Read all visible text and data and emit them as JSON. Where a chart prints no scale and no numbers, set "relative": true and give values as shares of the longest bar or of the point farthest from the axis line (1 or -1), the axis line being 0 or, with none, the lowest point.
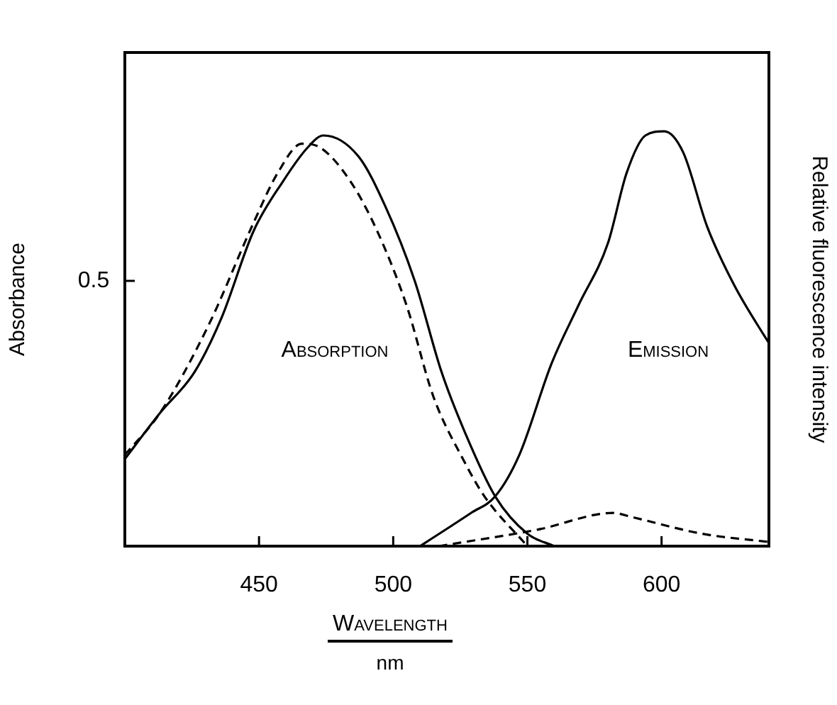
{
  "chart_data": {
    "type": "line",
    "relative": true,
    "xlabel": "Wavelength",
    "ylabel": "Absorbance",
    "y2label": "Relative fluorescence intensity",
    "xlim": [
      400,
      640
    ],
    "xticks": [
      450,
      500,
      550,
      600
    ],
    "series": [
      {
        "color": "#000000",
        "line_style": "solid",
        "x": [
          400,
          413,
          426,
          436,
          448,
          459,
          468,
          474,
          487,
          497,
          508,
          518,
          527,
          538,
          550,
          560
        ],
        "values": [
          0.21,
          0.32,
          0.42,
          0.55,
          0.76,
          0.88,
          0.96,
          0.99,
          0.94,
          0.82,
          0.64,
          0.42,
          0.27,
          0.12,
          0.03,
          0
        ]
      },
      {
        "color": "#000000",
        "line_style": "dashed",
        "x": [
          400,
          413,
          431,
          448,
          457,
          466,
          473,
          484,
          494,
          505,
          515,
          526,
          534,
          550
        ],
        "values": [
          0.22,
          0.32,
          0.53,
          0.78,
          0.9,
          0.97,
          0.96,
          0.88,
          0.76,
          0.58,
          0.36,
          0.21,
          0.12,
          0
        ]
      },
      {
        "color": "#000000",
        "line_style": "solid",
        "x": [
          510,
          529,
          538,
          547,
          559,
          569,
          580,
          587,
          594,
          601,
          608,
          617,
          627,
          638,
          640
        ],
        "values": [
          0,
          0.08,
          0.12,
          0.22,
          0.44,
          0.58,
          0.73,
          0.9,
          0.99,
          1,
          0.95,
          0.77,
          0.63,
          0.51,
          0.49
        ]
      },
      {
        "color": "#000000",
        "line_style": "dashed",
        "x": [
          517,
          554,
          582,
          589,
          615,
          640
        ],
        "values": [
          0,
          0.04,
          0.08,
          0.07,
          0.03,
          0.01
        ]
      }
    ],
    "marker": "none",
    "grid": false,
    "legend": false,
    "annotations": [
      "Absorption",
      "Emission",
      "0.5",
      "nm"
    ]
  }
}
